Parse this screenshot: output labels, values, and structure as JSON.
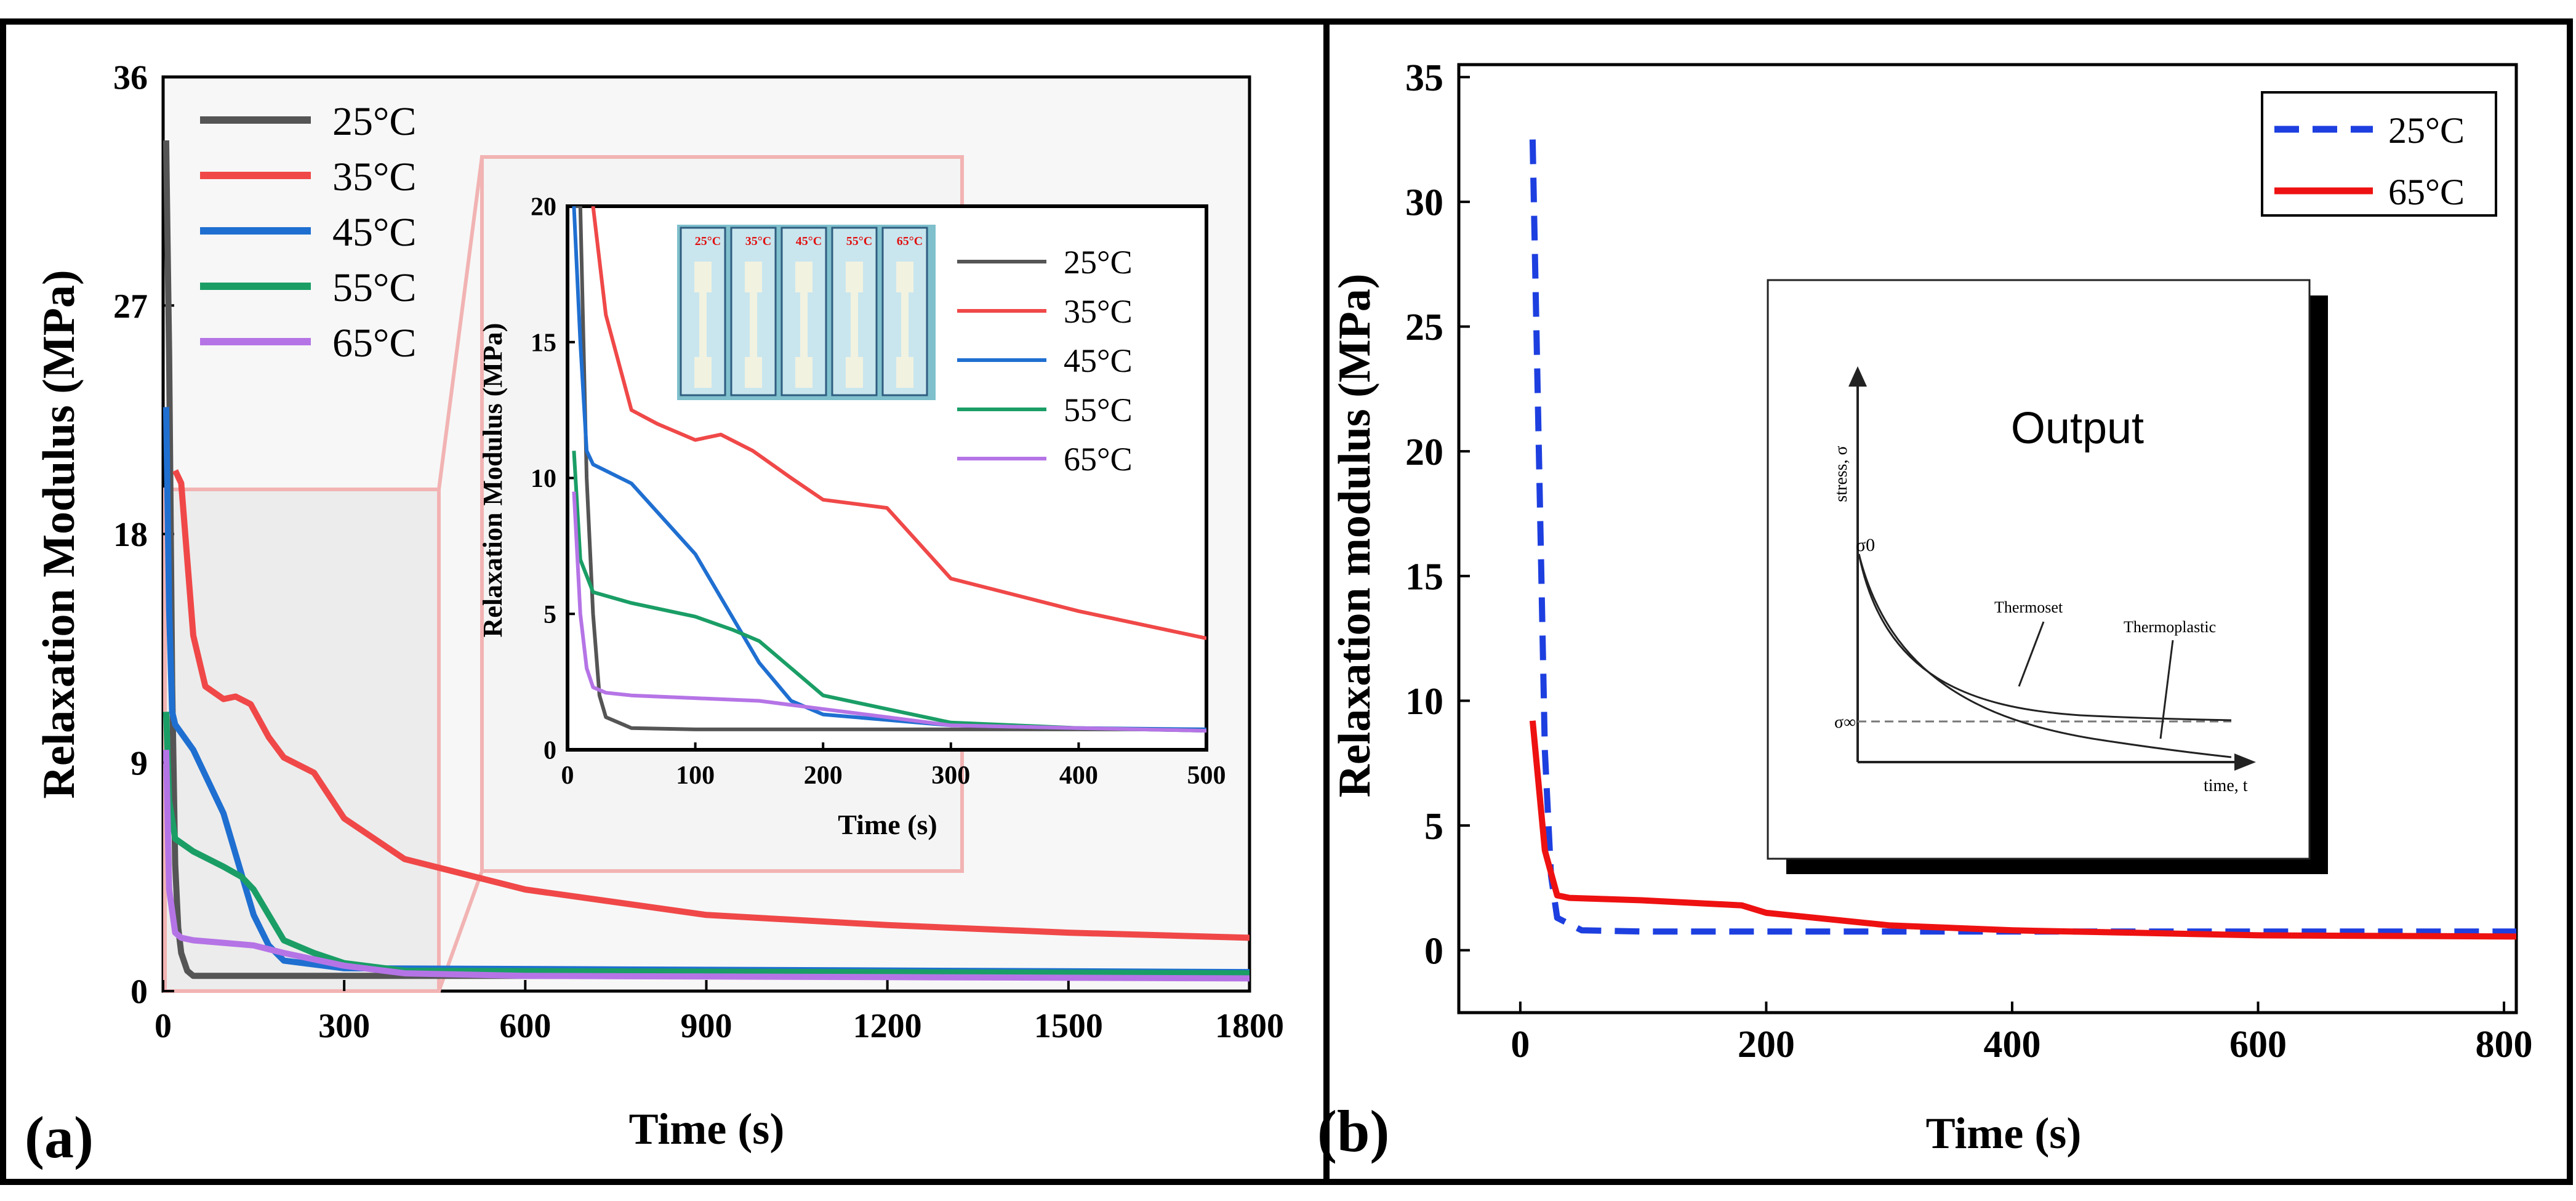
{
  "colors": {
    "c25": "#555555",
    "c35": "#f04848",
    "c45": "#1f6fd1",
    "c55": "#1a9e66",
    "c65": "#b574e6",
    "b25": "#1d3fe0",
    "b65": "#ee1111",
    "zoom": "#f2b3b3",
    "zoomFill": "#ededed",
    "photoBg": "#7fc0cc",
    "photoRed": "#e01010"
  },
  "panel_a": {
    "panel_label": "(a)",
    "ylabel": "Relaxation Modulus (MPa)",
    "xlabel": "Time (s)",
    "xticks": [
      "0",
      "300",
      "600",
      "900",
      "1200",
      "1500",
      "1800"
    ],
    "yticks": [
      "0",
      "9",
      "18",
      "27",
      "36"
    ],
    "legend": [
      "25°C",
      "35°C",
      "45°C",
      "55°C",
      "65°C"
    ]
  },
  "inset_a": {
    "ylabel": "Relaxation Modulus (MPa)",
    "xlabel": "Time (s)",
    "xticks": [
      "0",
      "100",
      "200",
      "300",
      "400",
      "500"
    ],
    "yticks": [
      "0",
      "5",
      "10",
      "15",
      "20"
    ],
    "legend": [
      "25°C",
      "35°C",
      "45°C",
      "55°C",
      "65°C"
    ],
    "photo_labels": [
      "25°C",
      "35°C",
      "45°C",
      "55°C",
      "65°C"
    ]
  },
  "panel_b": {
    "panel_label": "(b)",
    "ylabel": "Relaxation modulus (MPa)",
    "xlabel": "Time (s)",
    "xticks": [
      "0",
      "200",
      "400",
      "600",
      "800"
    ],
    "yticks": [
      "0",
      "5",
      "10",
      "15",
      "20",
      "25",
      "30",
      "35"
    ],
    "legend": [
      "25°C",
      "65°C"
    ]
  },
  "inset_b": {
    "title": "Output",
    "ylabel": "stress, σ",
    "xlabel": "time, t",
    "sigma0": "σ0",
    "sigmaInf": "σ∞",
    "curve1": "Thermoset",
    "curve2": "Thermoplastic"
  },
  "chart_data": [
    {
      "type": "line",
      "panel": "a",
      "xlabel": "Time (s)",
      "ylabel": "Relaxation Modulus (MPa)",
      "xlim": [
        0,
        1800
      ],
      "ylim": [
        0,
        36
      ],
      "grid": false,
      "legend_position": "top-left",
      "series": [
        {
          "name": "25°C",
          "x": [
            5,
            10,
            15,
            20,
            25,
            30,
            40,
            50,
            100,
            300,
            600,
            1200,
            1800
          ],
          "y": [
            33.5,
            25,
            12,
            5,
            2.5,
            1.5,
            0.8,
            0.6,
            0.6,
            0.6,
            0.6,
            0.6,
            0.6
          ]
        },
        {
          "name": "35°C",
          "x": [
            20,
            30,
            50,
            70,
            100,
            120,
            145,
            175,
            200,
            250,
            300,
            400,
            600,
            900,
            1200,
            1500,
            1800
          ],
          "y": [
            20.5,
            20,
            14,
            12,
            11.5,
            11.6,
            11.3,
            10,
            9.2,
            8.6,
            6.8,
            5.2,
            4,
            3,
            2.6,
            2.3,
            2.1
          ]
        },
        {
          "name": "45°C",
          "x": [
            5,
            10,
            15,
            20,
            50,
            100,
            150,
            175,
            200,
            300,
            1800
          ],
          "y": [
            23,
            15,
            11,
            10.5,
            9.5,
            7,
            3,
            1.8,
            1.2,
            0.9,
            0.75
          ]
        },
        {
          "name": "55°C",
          "x": [
            5,
            10,
            20,
            50,
            100,
            130,
            150,
            175,
            200,
            250,
            300,
            400,
            1800
          ],
          "y": [
            11,
            7.5,
            6,
            5.5,
            4.9,
            4.5,
            4,
            3,
            2,
            1.5,
            1.1,
            0.8,
            0.7
          ]
        },
        {
          "name": "65°C",
          "x": [
            5,
            10,
            20,
            30,
            50,
            100,
            150,
            200,
            300,
            400,
            600,
            1200,
            1800
          ],
          "y": [
            9.5,
            4,
            2.3,
            2.1,
            2,
            1.9,
            1.8,
            1.5,
            1,
            0.7,
            0.6,
            0.55,
            0.5
          ]
        }
      ]
    },
    {
      "type": "line",
      "panel": "a-inset",
      "xlabel": "Time (s)",
      "ylabel": "Relaxation Modulus (MPa)",
      "xlim": [
        0,
        500
      ],
      "ylim": [
        0,
        20
      ],
      "grid": false,
      "legend_position": "right",
      "series": [
        {
          "name": "25°C",
          "x": [
            5,
            10,
            15,
            20,
            25,
            30,
            50,
            100,
            300,
            500
          ],
          "y": [
            20,
            20,
            10,
            5,
            2,
            1.2,
            0.8,
            0.75,
            0.75,
            0.75
          ]
        },
        {
          "name": "35°C",
          "x": [
            20,
            30,
            50,
            70,
            100,
            120,
            145,
            175,
            200,
            250,
            300,
            400,
            500
          ],
          "y": [
            20,
            16,
            12.5,
            12,
            11.4,
            11.6,
            11,
            10,
            9.2,
            8.9,
            6.3,
            5.1,
            4.1
          ]
        },
        {
          "name": "45°C",
          "x": [
            5,
            10,
            15,
            20,
            50,
            100,
            150,
            175,
            200,
            300,
            400,
            500
          ],
          "y": [
            20,
            15,
            11,
            10.5,
            9.8,
            7.2,
            3.2,
            1.8,
            1.3,
            0.9,
            0.8,
            0.75
          ]
        },
        {
          "name": "55°C",
          "x": [
            5,
            10,
            20,
            50,
            100,
            130,
            150,
            175,
            200,
            250,
            300,
            400,
            500
          ],
          "y": [
            11,
            7,
            5.8,
            5.4,
            4.9,
            4.4,
            4,
            3,
            2,
            1.5,
            1,
            0.8,
            0.7
          ]
        },
        {
          "name": "65°C",
          "x": [
            5,
            10,
            15,
            20,
            30,
            50,
            100,
            150,
            200,
            250,
            300,
            400,
            500
          ],
          "y": [
            9.5,
            5,
            3,
            2.3,
            2.1,
            2,
            1.9,
            1.8,
            1.5,
            1.2,
            0.9,
            0.8,
            0.7
          ]
        }
      ]
    },
    {
      "type": "line",
      "panel": "b",
      "xlabel": "Time (s)",
      "ylabel": "Relaxation modulus (MPa)",
      "xlim": [
        -50,
        810
      ],
      "ylim": [
        -2.5,
        35.5
      ],
      "grid": false,
      "legend_position": "top-right",
      "series": [
        {
          "name": "25°C",
          "x": [
            10,
            20,
            25,
            30,
            50,
            100,
            200,
            400,
            600,
            810
          ],
          "y": [
            32.5,
            8,
            3,
            1.3,
            0.8,
            0.75,
            0.75,
            0.75,
            0.75,
            0.75
          ]
        },
        {
          "name": "65°C",
          "x": [
            10,
            20,
            30,
            40,
            100,
            180,
            200,
            300,
            400,
            500,
            600,
            810
          ],
          "y": [
            9.2,
            4,
            2.2,
            2.1,
            2,
            1.8,
            1.5,
            1,
            0.8,
            0.7,
            0.6,
            0.55
          ]
        }
      ]
    }
  ]
}
